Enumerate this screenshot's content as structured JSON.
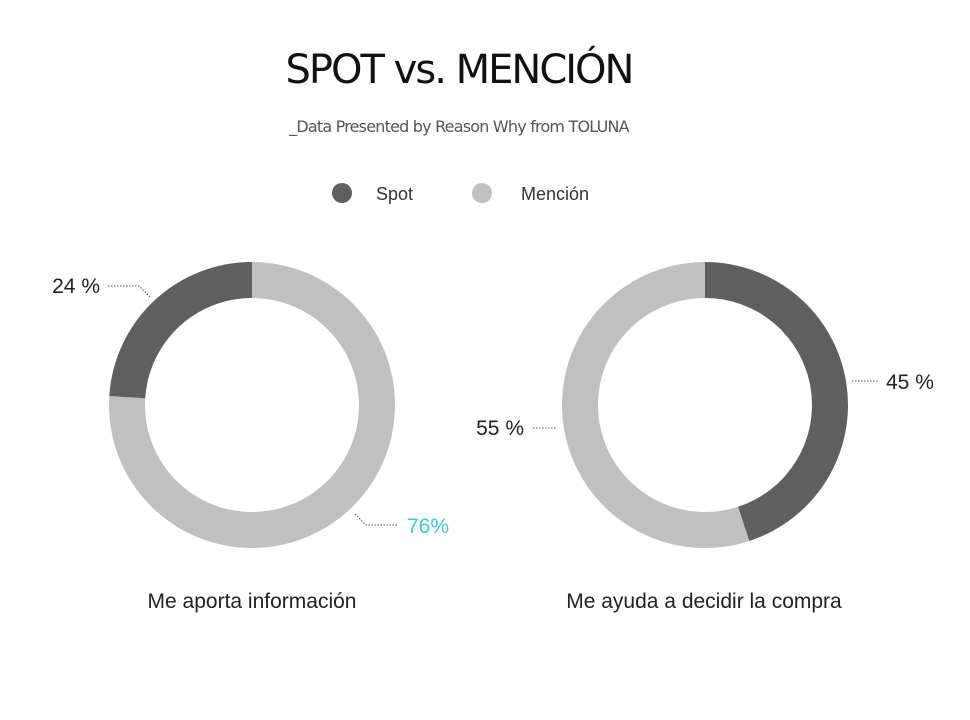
{
  "title": "SPOT vs. MENCIÓN",
  "subtitle": "_Data Presented by Reason Why from TOLUNA",
  "legend": [
    {
      "label": "Spot",
      "color": "#5f5f5f"
    },
    {
      "label": "Mención",
      "color": "#c0c0c0"
    }
  ],
  "chart_data": [
    {
      "type": "pie",
      "title": "Me aporta información",
      "series": [
        {
          "name": "Spot",
          "value": 24,
          "label": "24 %",
          "color": "#5f5f5f"
        },
        {
          "name": "Mención",
          "value": 76,
          "label": "76%",
          "color": "#c0c0c0",
          "label_color": "#3cc7e6"
        }
      ]
    },
    {
      "type": "pie",
      "title": "Me ayuda a decidir la compra",
      "series": [
        {
          "name": "Spot",
          "value": 45,
          "label": "45 %",
          "color": "#5f5f5f"
        },
        {
          "name": "Mención",
          "value": 55,
          "label": "55 %",
          "color": "#c0c0c0"
        }
      ]
    }
  ]
}
